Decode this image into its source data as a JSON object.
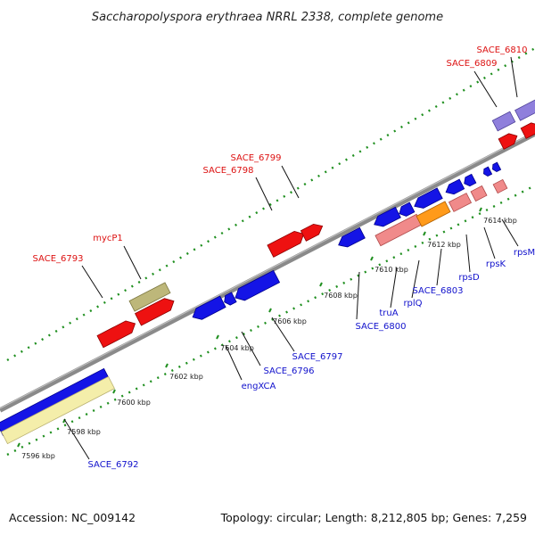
{
  "title": "Saccharopolyspora erythraea NRRL 2338, complete genome",
  "footer": {
    "accession": "Accession: NC_009142",
    "summary": "Topology: circular; Length: 8,212,805 bp; Genes: 7,259"
  },
  "colors": {
    "label_forward": "#dd1111",
    "label_reverse": "#1111cc",
    "backbone": "#8a8a8a",
    "tick_dots": "#1f8f1f"
  },
  "ticks": [
    {
      "label": "7596 kbp"
    },
    {
      "label": "7598 kbp"
    },
    {
      "label": "7600 kbp"
    },
    {
      "label": "7602 kbp"
    },
    {
      "label": "7604 kbp"
    },
    {
      "label": "7606 kbp"
    },
    {
      "label": "7608 kbp"
    },
    {
      "label": "7610 kbp"
    },
    {
      "label": "7612 kbp"
    },
    {
      "label": "7614 kbp"
    }
  ],
  "forward_labels": [
    {
      "name": "SACE_6793"
    },
    {
      "name": "mycP1"
    },
    {
      "name": "SACE_6798"
    },
    {
      "name": "SACE_6799"
    },
    {
      "name": "SACE_6809"
    },
    {
      "name": "SACE_6810"
    }
  ],
  "reverse_labels": [
    {
      "name": "SACE_6792"
    },
    {
      "name": "engXCA"
    },
    {
      "name": "SACE_6796"
    },
    {
      "name": "SACE_6797"
    },
    {
      "name": "SACE_6800"
    },
    {
      "name": "truA"
    },
    {
      "name": "rplQ"
    },
    {
      "name": "SACE_6803"
    },
    {
      "name": "rpsD"
    },
    {
      "name": "rpsK"
    },
    {
      "name": "rpsM"
    }
  ]
}
